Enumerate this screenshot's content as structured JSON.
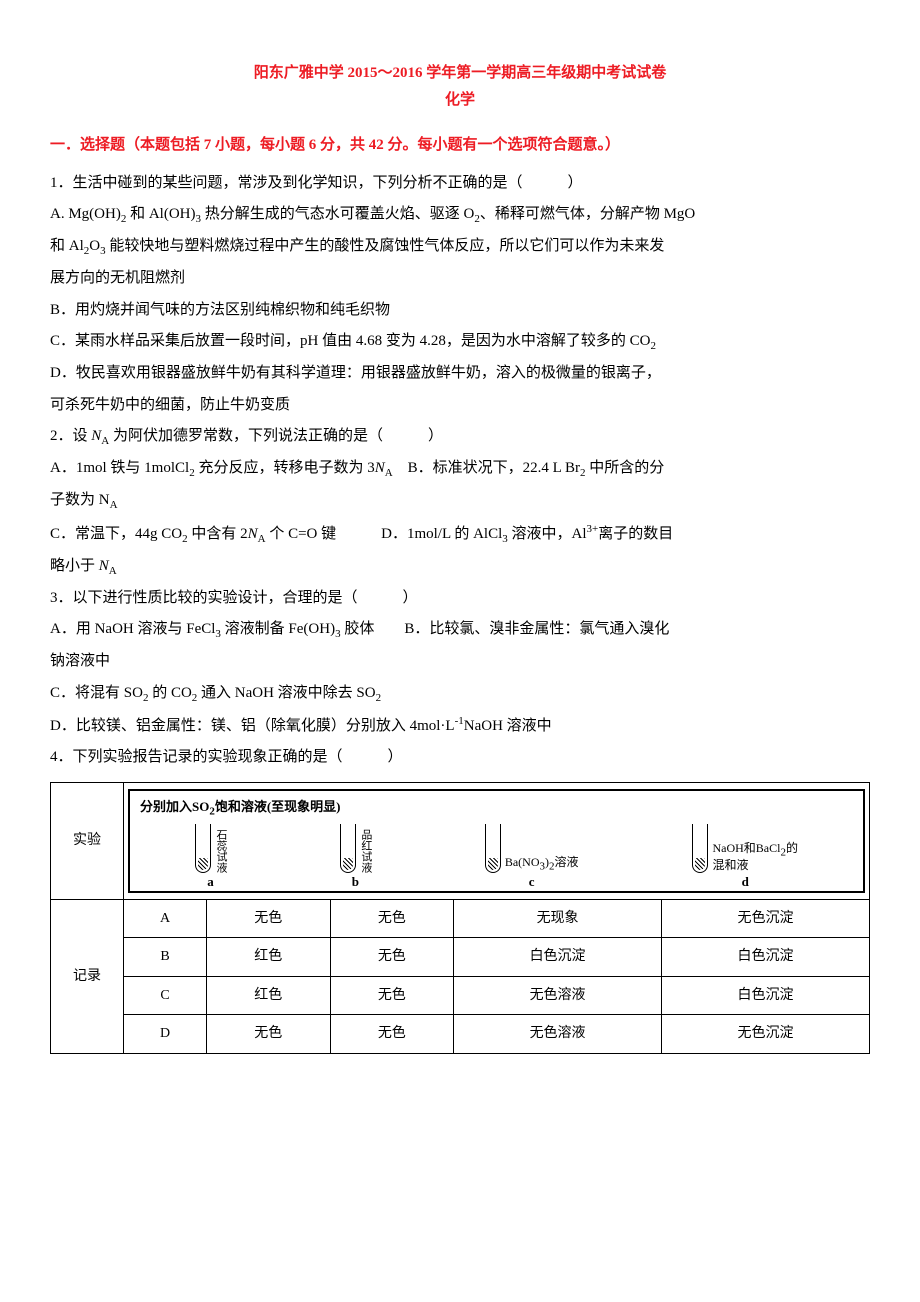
{
  "header": {
    "title": "阳东广雅中学 2015～2016 学年第一学期高三年级期中考试试卷",
    "subtitle": "化学"
  },
  "section1": {
    "heading": "一．选择题（本题包括 7 小题，每小题 6 分，共 42 分。每小题有一个选项符合题意。）"
  },
  "q1": {
    "stem": "1．生活中碰到的某些问题，常涉及到化学知识，下列分析不正确的是（　　　）",
    "optA_part1": "A. Mg(OH)",
    "optA_sub1": "2",
    "optA_part2": " 和 Al(OH)",
    "optA_sub2": "3",
    "optA_part3": " 热分解生成的气态水可覆盖火焰、驱逐 O",
    "optA_sub3": "2",
    "optA_part4": "、稀释可燃气体，分解产物 MgO",
    "optA_line2_p1": "和 Al",
    "optA_line2_sub1": "2",
    "optA_line2_p2": "O",
    "optA_line2_sub2": "3",
    "optA_line2_p3": " 能较快地与塑料燃烧过程中产生的酸性及腐蚀性气体反应，所以它们可以作为未来发",
    "optA_line3": "展方向的无机阻燃剂",
    "optB": "B．用灼烧并闻气味的方法区别纯棉织物和纯毛织物",
    "optC_p1": "C．某雨水样品采集后放置一段时间，pH 值由 4.68 变为 4.28，是因为水中溶解了较多的 CO",
    "optC_sub": "2",
    "optD": "D．牧民喜欢用银器盛放鲜牛奶有其科学道理：用银器盛放鲜牛奶，溶入的极微量的银离子，",
    "optD_line2": "可杀死牛奶中的细菌，防止牛奶变质"
  },
  "q2": {
    "stem_p1": "2．设 ",
    "stem_i1": "N",
    "stem_sub1": "A",
    "stem_p2": " 为阿伏加德罗常数，下列说法正确的是（　　　）",
    "optA_p1": "A．1mol 铁与 1molCl",
    "optA_sub1": "2",
    "optA_p2": " 充分反应，转移电子数为 3",
    "optA_i1": "N",
    "optA_sub2": "A",
    "optA_p3": "　B．标准状况下，22.4 L Br",
    "optA_sub3": "2",
    "optA_p4": " 中所含的分",
    "optA_line2_p1": "子数为 N",
    "optA_line2_sub": "A",
    "optC_p1": "C．常温下，44g CO",
    "optC_sub1": "2",
    "optC_p2": " 中含有 2",
    "optC_i1": "N",
    "optC_sub2": "A",
    "optC_p3": " 个 C=O 键　　　D．1mol/L 的 AlCl",
    "optC_sub3": "3",
    "optC_p4": " 溶液中，Al",
    "optC_sup": "3+",
    "optC_p5": "离子的数目",
    "optC_line2_p1": "略小于 ",
    "optC_line2_i": "N",
    "optC_line2_sub": "A"
  },
  "q3": {
    "stem": "3．以下进行性质比较的实验设计，合理的是（　　　）",
    "optA_p1": "A．用 NaOH 溶液与 FeCl",
    "optA_sub1": "3",
    "optA_p2": " 溶液制备 Fe(OH)",
    "optA_sub2": "3",
    "optA_p3": " 胶体　　B．比较氯、溴非金属性：氯气通入溴化",
    "optA_line2": "钠溶液中",
    "optC_p1": "C．将混有 SO",
    "optC_sub1": "2",
    "optC_p2": " 的 CO",
    "optC_sub2": "2",
    "optC_p3": " 通入 NaOH 溶液中除去 SO",
    "optC_sub3": "2",
    "optD_p1": "D．比较镁、铝金属性：镁、铝（除氧化膜）分别放入 4mol·L",
    "optD_sup": "-1",
    "optD_p2": "NaOH 溶液中"
  },
  "q4": {
    "stem": "4．下列实验报告记录的实验现象正确的是（　　　）",
    "table": {
      "row_labels": {
        "experiment": "实验",
        "record": "记录"
      },
      "exp_caption_p1": "分别加入SO",
      "exp_caption_sub": "2",
      "exp_caption_p2": "饱和溶液(至现象明显)",
      "tubes": {
        "a": {
          "letter": "a",
          "label_l1": "石蕊",
          "label_l2": "试液"
        },
        "b": {
          "letter": "b",
          "label_l1": "品红",
          "label_l2": "试液"
        },
        "c": {
          "letter": "c",
          "label_p1": "Ba(NO",
          "label_sub1": "3",
          "label_p2": ")",
          "label_sub2": "2",
          "label_p3": "溶液"
        },
        "d": {
          "letter": "d",
          "label_p1": "NaOH和BaCl",
          "label_sub": "2",
          "label_p2": "的",
          "label_l2": "混和液"
        }
      },
      "rows": [
        {
          "id": "A",
          "a": "无色",
          "b": "无色",
          "c": "无现象",
          "d": "无色沉淀"
        },
        {
          "id": "B",
          "a": "红色",
          "b": "无色",
          "c": "白色沉淀",
          "d": "白色沉淀"
        },
        {
          "id": "C",
          "a": "红色",
          "b": "无色",
          "c": "无色溶液",
          "d": "白色沉淀"
        },
        {
          "id": "D",
          "a": "无色",
          "b": "无色",
          "c": "无色溶液",
          "d": "无色沉淀"
        }
      ]
    }
  },
  "colors": {
    "accent": "#ed1c24",
    "text": "#000000",
    "border": "#000000",
    "background": "#ffffff"
  }
}
